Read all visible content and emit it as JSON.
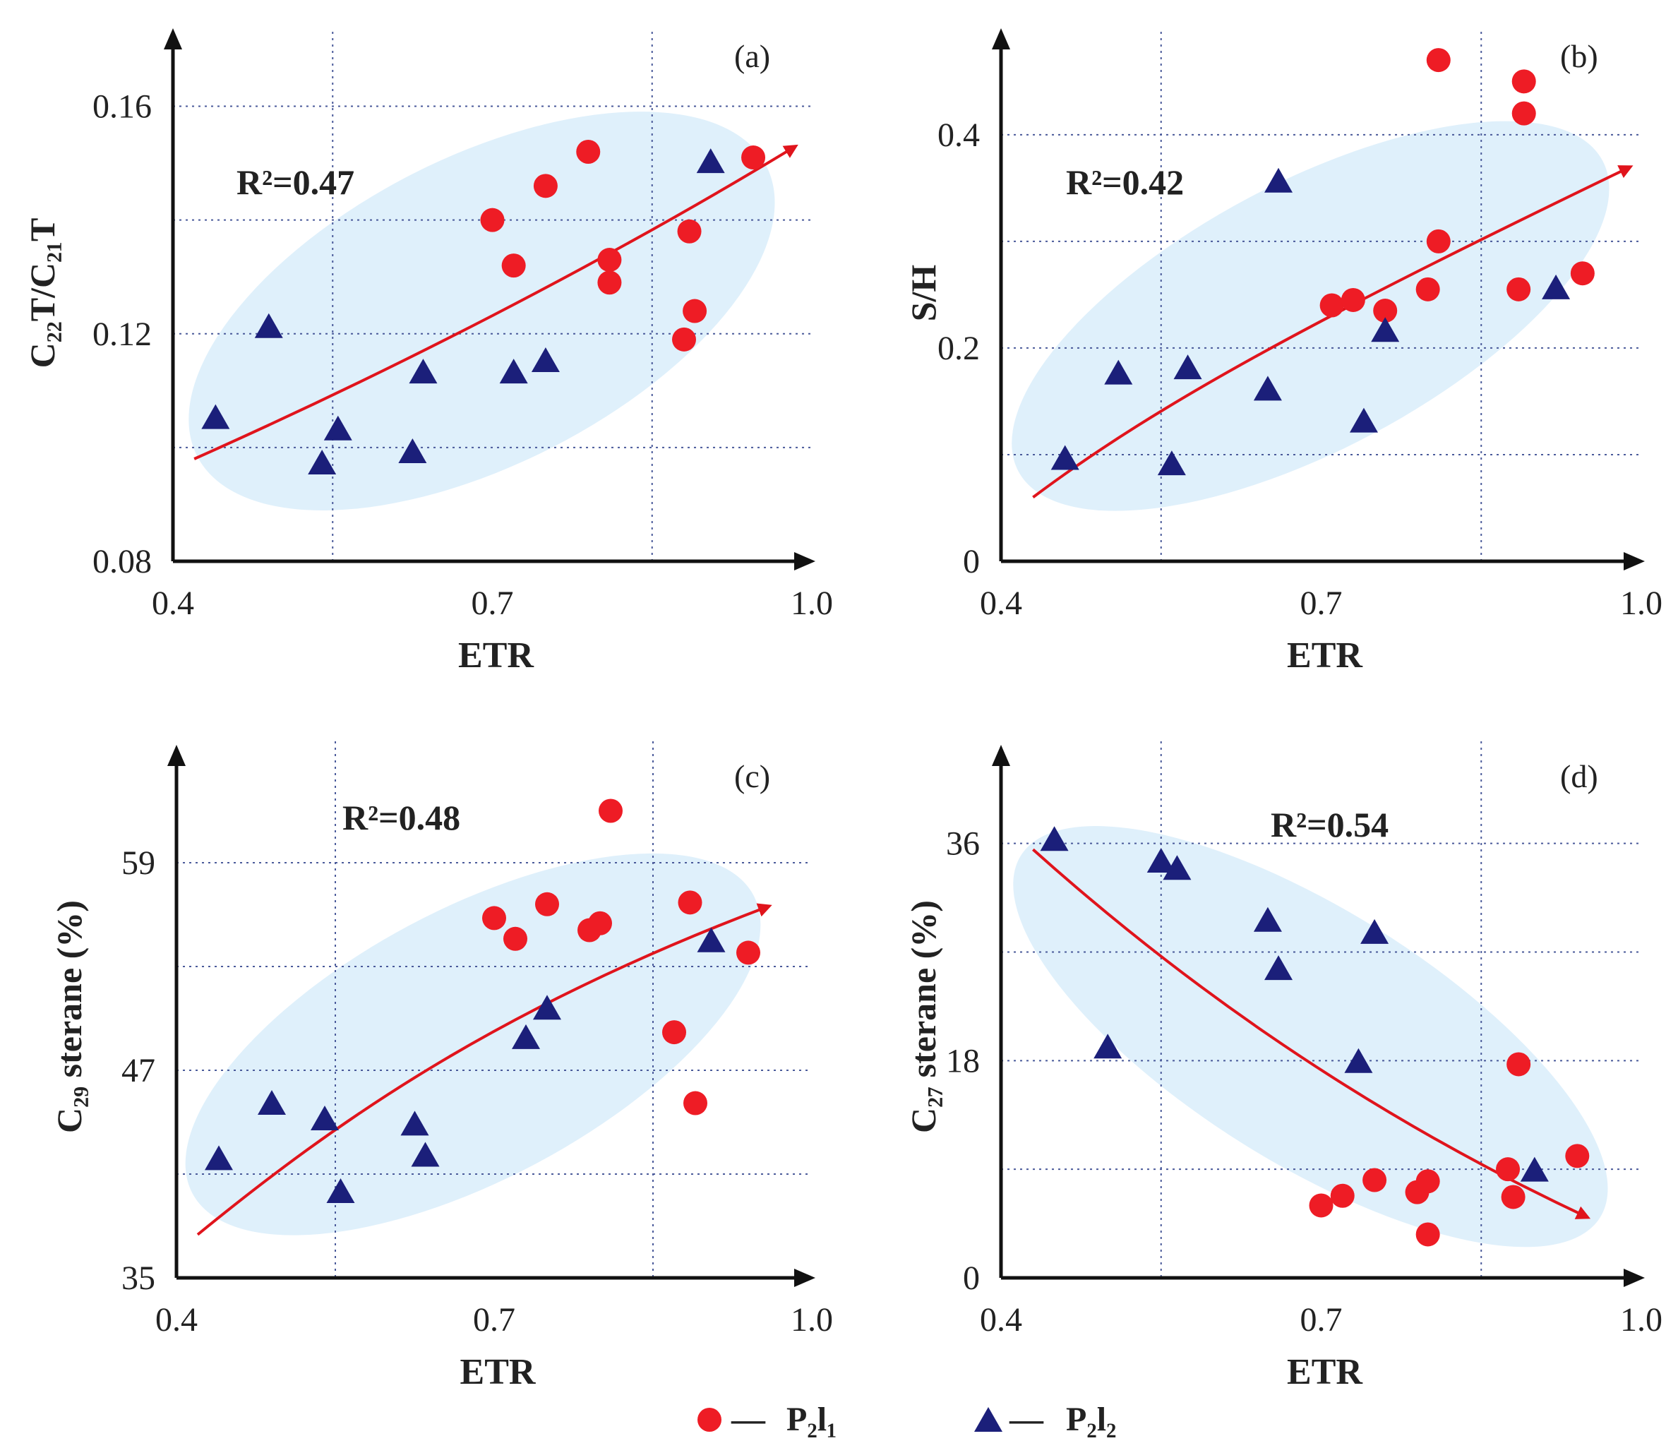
{
  "colors": {
    "circle": "#ee1c25",
    "triangle": "#1b1f7a",
    "trend": "#e0141c",
    "ellipse": "#dff0fb",
    "grid": "#4a5a9a",
    "axis": "#111111"
  },
  "legend": [
    {
      "marker": "circle",
      "dash": "—",
      "label": "P₂l₁"
    },
    {
      "marker": "triangle",
      "dash": "—",
      "label": "P₂l₂"
    }
  ],
  "chart_data": [
    {
      "id": "a",
      "type": "scatter",
      "panel_label": "(a)",
      "r2_label": "R²=0.47",
      "xlabel": "ETR",
      "ylabel": "C₂₂T/C₂₁T",
      "xlim": [
        0.4,
        1.0
      ],
      "ylim": [
        0.08,
        0.17
      ],
      "xticks": [
        0.4,
        0.7,
        1.0
      ],
      "xtick_labels": [
        "0.4",
        "0.7",
        "1.0"
      ],
      "xgrid": [
        0.55,
        0.85
      ],
      "yticks": [
        0.08,
        0.12,
        0.16
      ],
      "ytick_labels": [
        "0.08",
        "0.12",
        "0.16"
      ],
      "ygrid": [
        0.1,
        0.12,
        0.14,
        0.16
      ],
      "series": [
        {
          "name": "P₂l₁",
          "marker": "circle",
          "points": [
            [
              0.7,
              0.14
            ],
            [
              0.72,
              0.132
            ],
            [
              0.75,
              0.146
            ],
            [
              0.79,
              0.152
            ],
            [
              0.81,
              0.133
            ],
            [
              0.81,
              0.129
            ],
            [
              0.885,
              0.138
            ],
            [
              0.89,
              0.124
            ],
            [
              0.88,
              0.119
            ],
            [
              0.945,
              0.151
            ]
          ]
        },
        {
          "name": "P₂l₂",
          "marker": "triangle",
          "points": [
            [
              0.44,
              0.105
            ],
            [
              0.49,
              0.121
            ],
            [
              0.54,
              0.097
            ],
            [
              0.555,
              0.103
            ],
            [
              0.625,
              0.099
            ],
            [
              0.635,
              0.113
            ],
            [
              0.72,
              0.113
            ],
            [
              0.75,
              0.115
            ],
            [
              0.905,
              0.15
            ]
          ]
        }
      ],
      "trend": [
        [
          0.42,
          0.098
        ],
        [
          0.6,
          0.113
        ],
        [
          0.8,
          0.132
        ],
        [
          0.985,
          0.153
        ]
      ],
      "ellipse": {
        "center": [
          0.69,
          0.124
        ],
        "rx": 0.3,
        "ry": 0.027,
        "rotate": -27
      }
    },
    {
      "id": "b",
      "type": "scatter",
      "panel_label": "(b)",
      "r2_label": "R²=0.42",
      "xlabel": "ETR",
      "ylabel": "S/H",
      "xlim": [
        0.4,
        1.0
      ],
      "ylim": [
        0.0,
        0.48
      ],
      "xticks": [
        0.4,
        0.7,
        1.0
      ],
      "xtick_labels": [
        "0.4",
        "0.7",
        "1.0"
      ],
      "xgrid": [
        0.55,
        0.85
      ],
      "yticks": [
        0.0,
        0.2,
        0.4
      ],
      "ytick_labels": [
        "0",
        "0.2",
        "0.4"
      ],
      "ygrid": [
        0.1,
        0.2,
        0.3,
        0.4
      ],
      "series": [
        {
          "name": "P₂l₁",
          "marker": "circle",
          "points": [
            [
              0.71,
              0.24
            ],
            [
              0.73,
              0.245
            ],
            [
              0.76,
              0.235
            ],
            [
              0.8,
              0.255
            ],
            [
              0.81,
              0.3
            ],
            [
              0.81,
              0.47
            ],
            [
              0.885,
              0.255
            ],
            [
              0.89,
              0.45
            ],
            [
              0.89,
              0.42
            ],
            [
              0.945,
              0.27
            ]
          ]
        },
        {
          "name": "P₂l₂",
          "marker": "triangle",
          "points": [
            [
              0.46,
              0.095
            ],
            [
              0.51,
              0.175
            ],
            [
              0.56,
              0.09
            ],
            [
              0.575,
              0.18
            ],
            [
              0.65,
              0.16
            ],
            [
              0.66,
              0.355
            ],
            [
              0.74,
              0.13
            ],
            [
              0.76,
              0.215
            ],
            [
              0.92,
              0.255
            ]
          ]
        }
      ],
      "trend": [
        [
          0.43,
          0.06
        ],
        [
          0.55,
          0.15
        ],
        [
          0.7,
          0.23
        ],
        [
          0.99,
          0.37
        ]
      ],
      "ellipse": {
        "center": [
          0.69,
          0.23
        ],
        "rx": 0.31,
        "ry": 0.125,
        "rotate": -28
      }
    },
    {
      "id": "c",
      "type": "scatter",
      "panel_label": "(c)",
      "r2_label": "R²=0.48",
      "xlabel": "ETR",
      "ylabel": "C₂₉ sterane (%)",
      "xlim": [
        0.4,
        1.0
      ],
      "ylim": [
        35,
        65
      ],
      "xticks": [
        0.4,
        0.7,
        1.0
      ],
      "xtick_labels": [
        "0.4",
        "0.7",
        "1.0"
      ],
      "xgrid": [
        0.55,
        0.85
      ],
      "yticks": [
        35,
        47,
        59
      ],
      "ytick_labels": [
        "35",
        "47",
        "59"
      ],
      "ygrid": [
        41,
        47,
        53,
        59
      ],
      "series": [
        {
          "name": "P₂l₁",
          "marker": "circle",
          "points": [
            [
              0.7,
              55.8
            ],
            [
              0.72,
              54.6
            ],
            [
              0.75,
              56.6
            ],
            [
              0.79,
              55.1
            ],
            [
              0.8,
              55.5
            ],
            [
              0.81,
              62.0
            ],
            [
              0.87,
              49.2
            ],
            [
              0.885,
              56.7
            ],
            [
              0.89,
              45.1
            ],
            [
              0.94,
              53.8
            ]
          ]
        },
        {
          "name": "P₂l₂",
          "marker": "triangle",
          "points": [
            [
              0.44,
              41.8
            ],
            [
              0.49,
              45.0
            ],
            [
              0.54,
              44.1
            ],
            [
              0.555,
              39.9
            ],
            [
              0.625,
              43.8
            ],
            [
              0.635,
              42.0
            ],
            [
              0.73,
              48.8
            ],
            [
              0.75,
              50.5
            ],
            [
              0.905,
              54.4
            ]
          ]
        }
      ],
      "trend": [
        [
          0.42,
          37.5
        ],
        [
          0.55,
          44.0
        ],
        [
          0.7,
          50.5
        ],
        [
          0.96,
          56.5
        ]
      ],
      "ellipse": {
        "center": [
          0.68,
          48.5
        ],
        "rx": 0.3,
        "ry": 7.8,
        "rotate": -28
      }
    },
    {
      "id": "d",
      "type": "scatter",
      "panel_label": "(d)",
      "r2_label": "R²=0.54",
      "xlabel": "ETR",
      "ylabel": "C₂₇ sterane (%)",
      "xlim": [
        0.4,
        1.0
      ],
      "ylim": [
        0,
        43
      ],
      "xticks": [
        0.4,
        0.7,
        1.0
      ],
      "xtick_labels": [
        "0.4",
        "0.7",
        "1.0"
      ],
      "xgrid": [
        0.55,
        0.85
      ],
      "yticks": [
        0,
        18,
        36
      ],
      "ytick_labels": [
        "0",
        "18",
        "36"
      ],
      "ygrid": [
        9,
        18,
        27,
        36
      ],
      "series": [
        {
          "name": "P₂l₁",
          "marker": "circle",
          "points": [
            [
              0.7,
              6.0
            ],
            [
              0.72,
              6.8
            ],
            [
              0.75,
              8.1
            ],
            [
              0.79,
              7.1
            ],
            [
              0.8,
              8.0
            ],
            [
              0.8,
              3.6
            ],
            [
              0.875,
              9.0
            ],
            [
              0.88,
              6.7
            ],
            [
              0.885,
              17.7
            ],
            [
              0.94,
              10.1
            ]
          ]
        },
        {
          "name": "P₂l₂",
          "marker": "triangle",
          "points": [
            [
              0.45,
              36.2
            ],
            [
              0.5,
              19.0
            ],
            [
              0.55,
              34.4
            ],
            [
              0.565,
              33.8
            ],
            [
              0.65,
              29.5
            ],
            [
              0.66,
              25.5
            ],
            [
              0.735,
              17.8
            ],
            [
              0.75,
              28.5
            ],
            [
              0.9,
              8.8
            ]
          ]
        }
      ],
      "trend": [
        [
          0.43,
          35.5
        ],
        [
          0.55,
          26.0
        ],
        [
          0.72,
          14.5
        ],
        [
          0.95,
          5.0
        ]
      ],
      "ellipse": {
        "center": [
          0.69,
          20.0
        ],
        "rx": 0.32,
        "ry": 10.5,
        "rotate": 32
      }
    }
  ]
}
